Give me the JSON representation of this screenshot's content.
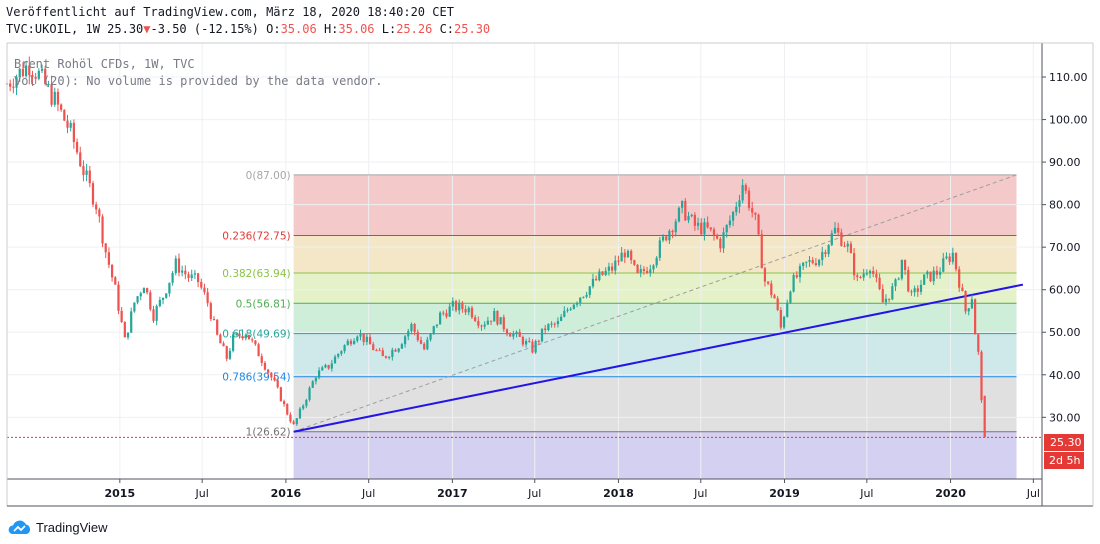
{
  "header": {
    "published_line": "Veröffentlicht auf TradingView.com, März 18, 2020 18:40:20 CET",
    "symbol_prefix": "TVC:UKOIL, 1W 25.30",
    "change_arrow": "▼",
    "change": "-3.50 (-12.15%)",
    "o_label": "O:",
    "o_value": "35.06",
    "h_label": "H:",
    "h_value": "35.06",
    "l_label": "L:",
    "l_value": "25.26",
    "c_label": "C:",
    "c_value": "25.30"
  },
  "legend": {
    "series_title": "Brent Rohöl CFDs, 1W, TVC",
    "volume_note": "Vol (20): No volume is provided by the data vendor."
  },
  "price_badge": "25.30",
  "countdown_badge": "2d 5h",
  "footer": {
    "brand": "TradingView"
  },
  "colors": {
    "up": "#26a69a",
    "down": "#ef5350",
    "trendline": "#2314e8",
    "fib_0": "#f3c9c9",
    "fib_236": "#f3e7c8",
    "fib_382": "#e5f2c9",
    "fib_5": "#cfeed9",
    "fib_618": "#cfe9ea",
    "fib_786": "#e0e0e0",
    "fib_ext": "#d4d0f2"
  },
  "chart_data": {
    "type": "candlestick",
    "title": "Brent Rohöl CFDs, 1W, TVC",
    "y_axis": {
      "position": "right",
      "ticks": [
        "30.00",
        "40.00",
        "50.00",
        "60.00",
        "70.00",
        "80.00",
        "90.00",
        "100.00",
        "110.00"
      ],
      "range": [
        15.5,
        118
      ]
    },
    "x_axis": {
      "ticks": [
        "2015",
        "Jul",
        "2016",
        "Jul",
        "2017",
        "Jul",
        "2018",
        "Jul",
        "2019",
        "Jul",
        "2020",
        "Jul"
      ],
      "range": [
        "2014-04-28",
        "2020-07-20"
      ]
    },
    "grid": true,
    "last_price": 25.3,
    "fibonacci": {
      "from_date": "2016-01-18",
      "to_date": "2020-05-25",
      "levels": [
        {
          "ratio": "0",
          "price": 87.0,
          "label": "0(87.00)",
          "color": "#a7a7a7"
        },
        {
          "ratio": "0.236",
          "price": 72.75,
          "label": "0.236(72.75)",
          "color": "#e53935"
        },
        {
          "ratio": "0.382",
          "price": 63.94,
          "label": "0.382(63.94)",
          "color": "#8bc34a"
        },
        {
          "ratio": "0.5",
          "price": 56.81,
          "label": "0.5(56.81)",
          "color": "#4caf50"
        },
        {
          "ratio": "0.618",
          "price": 49.69,
          "label": "0.618(49.69)",
          "color": "#26a69a"
        },
        {
          "ratio": "0.786",
          "price": 39.54,
          "label": "0.786(39.54)",
          "color": "#1e88e5"
        },
        {
          "ratio": "1",
          "price": 26.62,
          "label": "1(26.62)",
          "color": "#757575"
        }
      ],
      "extension_bottom": 15.5,
      "diagonal": [
        {
          "date": "2016-01-18",
          "price": 26.62
        },
        {
          "date": "2020-05-25",
          "price": 87.0
        }
      ]
    },
    "trendline": [
      {
        "date": "2016-01-18",
        "price": 26.6
      },
      {
        "date": "2020-06-08",
        "price": 61.2
      }
    ],
    "price_path": [
      [
        "2014-04-28",
        108.5
      ],
      [
        "2014-06-16",
        113.0
      ],
      [
        "2014-07-07",
        110.5
      ],
      [
        "2014-08-11",
        104.5
      ],
      [
        "2014-09-15",
        97.0
      ],
      [
        "2014-10-13",
        88.0
      ],
      [
        "2014-11-10",
        80.0
      ],
      [
        "2014-12-01",
        69.0
      ],
      [
        "2014-12-22",
        60.0
      ],
      [
        "2015-01-12",
        48.0
      ],
      [
        "2015-02-02",
        57.0
      ],
      [
        "2015-02-23",
        61.5
      ],
      [
        "2015-03-16",
        54.0
      ],
      [
        "2015-04-06",
        58.5
      ],
      [
        "2015-05-04",
        66.0
      ],
      [
        "2015-06-01",
        63.0
      ],
      [
        "2015-06-22",
        62.0
      ],
      [
        "2015-07-13",
        57.0
      ],
      [
        "2015-08-03",
        49.0
      ],
      [
        "2015-08-24",
        44.0
      ],
      [
        "2015-09-07",
        48.5
      ],
      [
        "2015-10-05",
        50.0
      ],
      [
        "2015-11-02",
        45.0
      ],
      [
        "2015-12-07",
        38.0
      ],
      [
        "2016-01-04",
        31.0
      ],
      [
        "2016-01-18",
        28.0
      ],
      [
        "2016-02-08",
        33.0
      ],
      [
        "2016-03-07",
        40.0
      ],
      [
        "2016-04-04",
        42.0
      ],
      [
        "2016-05-02",
        46.0
      ],
      [
        "2016-06-06",
        50.0
      ],
      [
        "2016-07-04",
        47.0
      ],
      [
        "2016-08-01",
        44.0
      ],
      [
        "2016-09-05",
        47.0
      ],
      [
        "2016-10-03",
        51.5
      ],
      [
        "2016-10-31",
        46.0
      ],
      [
        "2016-12-05",
        54.0
      ],
      [
        "2017-01-02",
        56.0
      ],
      [
        "2017-02-06",
        55.5
      ],
      [
        "2017-03-06",
        52.0
      ],
      [
        "2017-04-03",
        54.0
      ],
      [
        "2017-05-01",
        50.5
      ],
      [
        "2017-06-05",
        48.0
      ],
      [
        "2017-06-26",
        46.0
      ],
      [
        "2017-07-24",
        51.0
      ],
      [
        "2017-08-21",
        52.0
      ],
      [
        "2017-09-18",
        56.5
      ],
      [
        "2017-10-23",
        60.0
      ],
      [
        "2017-11-20",
        63.0
      ],
      [
        "2017-12-18",
        65.0
      ],
      [
        "2018-01-15",
        69.0
      ],
      [
        "2018-02-12",
        63.0
      ],
      [
        "2018-03-12",
        66.0
      ],
      [
        "2018-04-16",
        73.0
      ],
      [
        "2018-05-21",
        79.0
      ],
      [
        "2018-06-18",
        75.0
      ],
      [
        "2018-07-16",
        74.0
      ],
      [
        "2018-08-13",
        71.0
      ],
      [
        "2018-09-10",
        78.0
      ],
      [
        "2018-10-01",
        85.0
      ],
      [
        "2018-10-29",
        76.0
      ],
      [
        "2018-11-19",
        62.0
      ],
      [
        "2018-12-10",
        58.0
      ],
      [
        "2018-12-24",
        51.0
      ],
      [
        "2019-01-14",
        61.0
      ],
      [
        "2019-02-18",
        66.0
      ],
      [
        "2019-03-18",
        67.5
      ],
      [
        "2019-04-22",
        74.0
      ],
      [
        "2019-05-20",
        70.0
      ],
      [
        "2019-06-10",
        62.0
      ],
      [
        "2019-07-08",
        66.0
      ],
      [
        "2019-08-05",
        57.0
      ],
      [
        "2019-09-02",
        61.0
      ],
      [
        "2019-09-16",
        67.0
      ],
      [
        "2019-10-07",
        58.0
      ],
      [
        "2019-11-04",
        62.5
      ],
      [
        "2019-12-02",
        64.0
      ],
      [
        "2019-12-23",
        67.0
      ],
      [
        "2020-01-06",
        68.5
      ],
      [
        "2020-01-20",
        62.0
      ],
      [
        "2020-02-03",
        55.0
      ],
      [
        "2020-02-17",
        58.5
      ],
      [
        "2020-02-24",
        50.0
      ],
      [
        "2020-03-02",
        45.0
      ],
      [
        "2020-03-09",
        33.5
      ],
      [
        "2020-03-16",
        25.3
      ]
    ]
  }
}
